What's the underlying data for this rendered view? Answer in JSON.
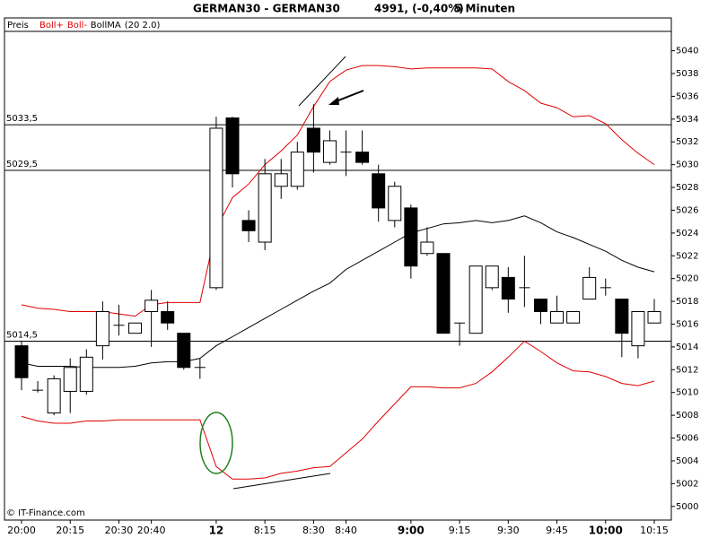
{
  "chart_data": {
    "type": "candlestick",
    "title": "GERMAN30 - GERMAN30",
    "quote": "4991, (-0,40%)",
    "interval": "5 Minuten",
    "price_label": "Preis",
    "indicator_params": "(20 2.0)",
    "footer": "© IT-Finance.com",
    "categories": [
      "20:00",
      null,
      null,
      "20:15",
      null,
      null,
      "20:30",
      null,
      "20:40",
      null,
      null,
      null,
      "12",
      null,
      null,
      "8:15",
      null,
      null,
      "8:30",
      null,
      "8:40",
      null,
      null,
      null,
      "9:00",
      null,
      null,
      "9:15",
      null,
      null,
      "9:30",
      null,
      null,
      "9:45",
      null,
      null,
      "10:00",
      null,
      null,
      "10:15"
    ],
    "bold_categories": [
      false,
      false,
      false,
      false,
      false,
      false,
      false,
      false,
      false,
      false,
      false,
      false,
      true,
      false,
      false,
      false,
      false,
      false,
      false,
      false,
      false,
      false,
      false,
      false,
      true,
      false,
      false,
      false,
      false,
      false,
      false,
      false,
      false,
      false,
      false,
      false,
      true,
      false,
      false,
      false
    ],
    "open": [
      5014.1,
      5010.2,
      5008.2,
      5010.1,
      5010.1,
      5014.1,
      5015.9,
      5015.2,
      5017.1,
      5017.1,
      5015.2,
      5012.2,
      5019.2,
      5034.1,
      5025.1,
      5023.2,
      5028.1,
      5028.1,
      5033.2,
      5030.2,
      5031.1,
      5031.1,
      5029.2,
      5025.1,
      5026.2,
      5022.2,
      5022.2,
      5016.1,
      5015.2,
      5019.2,
      5020.1,
      5019.2,
      5018.2,
      5016.1,
      5016.1,
      5018.2,
      5019.2,
      5018.2,
      5014.1,
      5016.1
    ],
    "high": [
      5014.5,
      5011.0,
      5011.5,
      5013.0,
      5013.8,
      5018.0,
      5017.7,
      5016.1,
      5019.0,
      5018.0,
      5015.2,
      5013.0,
      5034.2,
      5034.2,
      5026.0,
      5030.5,
      5030.5,
      5032.0,
      5035.3,
      5033.0,
      5033.0,
      5033.0,
      5030.0,
      5028.5,
      5026.5,
      5024.5,
      5022.2,
      5016.1,
      5021.1,
      5021.1,
      5021.0,
      5022.0,
      5018.2,
      5018.5,
      5017.1,
      5021.0,
      5020.0,
      5018.2,
      5017.1,
      5018.2
    ],
    "low": [
      5010.2,
      5010.0,
      5008.0,
      5008.2,
      5009.8,
      5012.9,
      5015.0,
      5015.2,
      5014.0,
      5015.5,
      5012.0,
      5011.2,
      5019.0,
      5028.0,
      5023.2,
      5022.5,
      5027.0,
      5027.8,
      5029.3,
      5030.0,
      5029.0,
      5030.0,
      5025.0,
      5024.5,
      5020.0,
      5022.0,
      5015.2,
      5014.1,
      5015.2,
      5019.0,
      5017.0,
      5017.5,
      5016.0,
      5016.1,
      5016.1,
      5018.2,
      5018.5,
      5013.1,
      5013.0,
      5016.1
    ],
    "close": [
      5011.3,
      5010.2,
      5011.2,
      5012.2,
      5013.1,
      5017.1,
      5015.9,
      5016.1,
      5018.1,
      5016.1,
      5012.2,
      5012.2,
      5033.2,
      5029.2,
      5024.2,
      5029.2,
      5029.2,
      5031.1,
      5031.1,
      5032.1,
      5031.1,
      5030.2,
      5026.2,
      5028.1,
      5021.1,
      5023.2,
      5015.2,
      5016.1,
      5021.1,
      5021.1,
      5018.2,
      5019.2,
      5017.1,
      5017.1,
      5017.1,
      5020.1,
      5019.2,
      5015.2,
      5017.1,
      5017.1
    ],
    "up_color": "#ffffff",
    "down_color": "#000000",
    "series": [
      {
        "name": "Boll+",
        "color": "#e00000",
        "values": [
          5017.7,
          5017.4,
          5017.3,
          5017.1,
          5017.1,
          5017.1,
          5016.9,
          5016.7,
          5017.7,
          5017.9,
          5017.9,
          5017.9,
          5024.4,
          5027.1,
          5028.3,
          5030.0,
          5031.2,
          5032.6,
          5035.1,
          5037.3,
          5038.3,
          5038.7,
          5038.7,
          5038.6,
          5038.4,
          5038.5,
          5038.5,
          5038.5,
          5038.5,
          5038.4,
          5037.3,
          5036.5,
          5035.4,
          5035.0,
          5034.2,
          5034.3,
          5033.6,
          5032.2,
          5031.0,
          5030.0
        ]
      },
      {
        "name": "Boll-",
        "color": "#e00000",
        "values": [
          5007.9,
          5007.5,
          5007.3,
          5007.3,
          5007.5,
          5007.5,
          5007.6,
          5007.6,
          5007.6,
          5007.6,
          5007.6,
          5007.6,
          5003.5,
          5002.4,
          5002.4,
          5002.5,
          5002.9,
          5003.1,
          5003.4,
          5003.5,
          5004.7,
          5005.9,
          5007.5,
          5009.0,
          5010.5,
          5010.5,
          5010.4,
          5010.4,
          5010.8,
          5011.8,
          5013.1,
          5014.5,
          5013.6,
          5012.6,
          5011.9,
          5011.8,
          5011.4,
          5010.8,
          5010.6,
          5011.0
        ]
      },
      {
        "name": "BollMA",
        "color": "#000000",
        "values": [
          5012.6,
          5012.3,
          5012.3,
          5012.3,
          5012.2,
          5012.2,
          5012.2,
          5012.3,
          5012.6,
          5012.7,
          5012.7,
          5013.0,
          5014.1,
          5014.9,
          5015.7,
          5016.5,
          5017.3,
          5018.1,
          5018.9,
          5019.6,
          5020.8,
          5021.6,
          5022.4,
          5023.2,
          5024.0,
          5024.4,
          5024.8,
          5024.9,
          5025.1,
          5024.9,
          5025.1,
          5025.5,
          5024.9,
          5024.1,
          5023.6,
          5023.0,
          5022.4,
          5021.6,
          5021.0,
          5020.6
        ]
      }
    ],
    "hlines": [
      {
        "value": 5033.5,
        "label": "5033,5"
      },
      {
        "value": 5029.5,
        "label": "5029,5"
      },
      {
        "value": 5014.5,
        "label": "5014,5"
      }
    ],
    "ylim": [
      4998.8,
      5041.7
    ],
    "yticks": [
      5000,
      5002,
      5004,
      5006,
      5008,
      5010,
      5012,
      5014,
      5016,
      5018,
      5020,
      5022,
      5024,
      5026,
      5028,
      5030,
      5032,
      5034,
      5036,
      5038,
      5040
    ]
  }
}
